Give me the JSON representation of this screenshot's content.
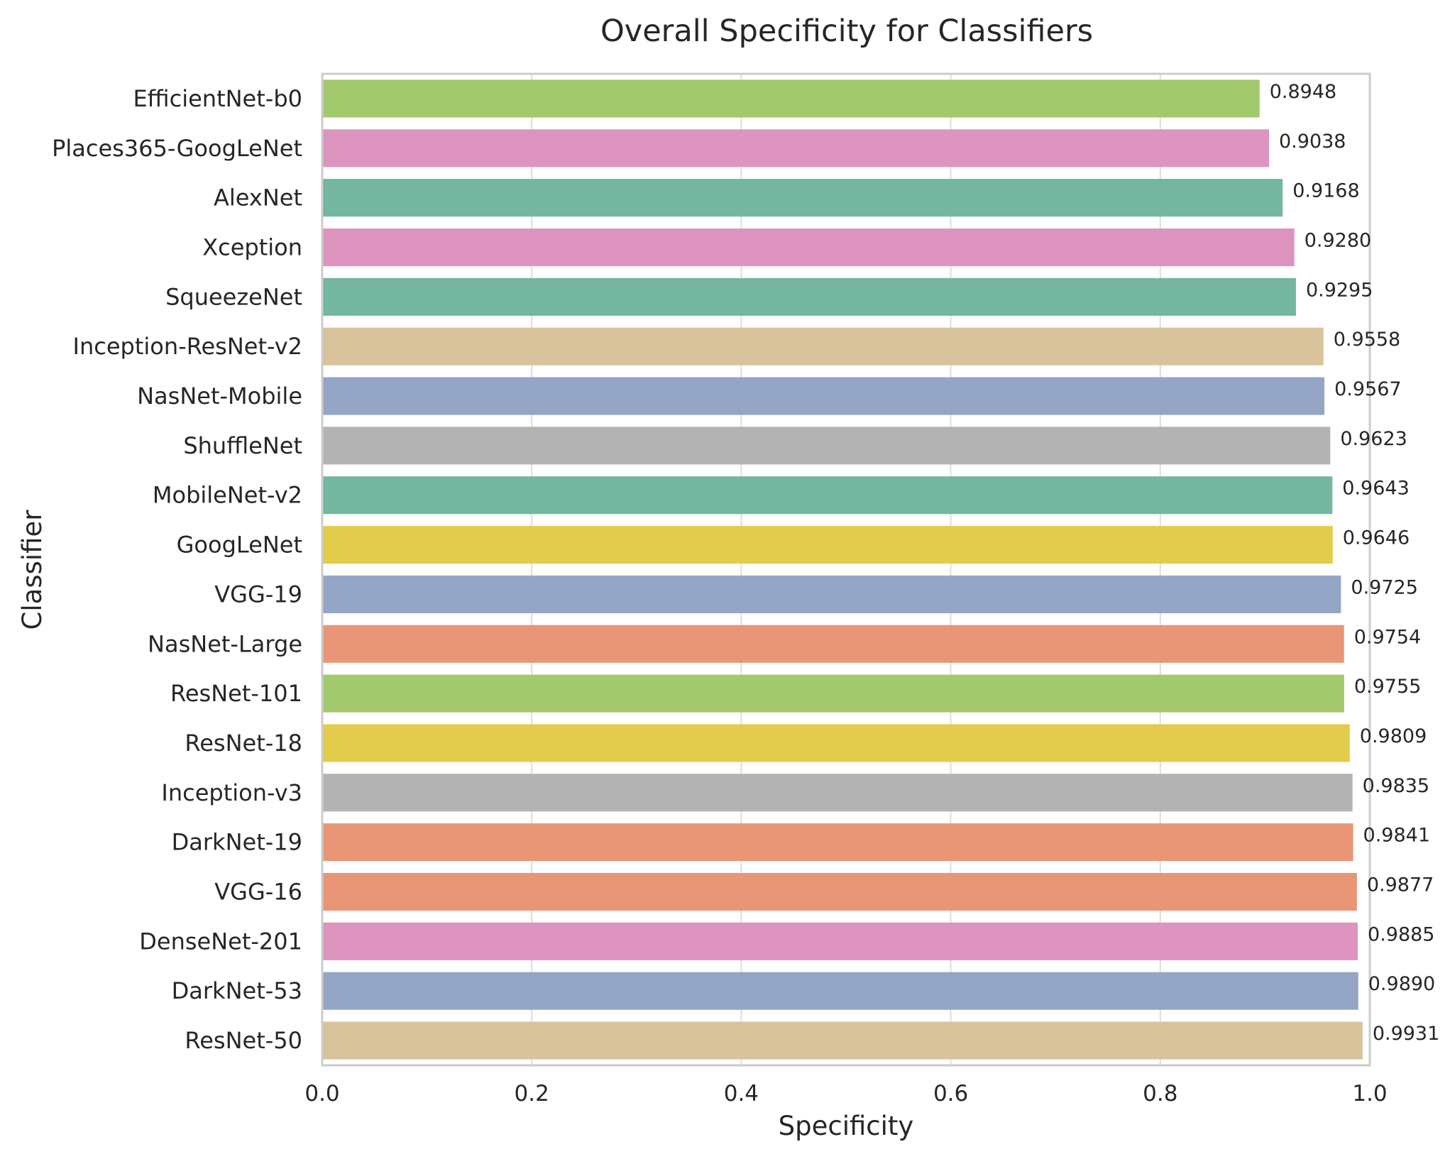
{
  "chart_data": {
    "type": "bar",
    "orientation": "horizontal",
    "title": "Overall Specificity for Classifiers",
    "xlabel": "Specificity",
    "ylabel": "Classifier",
    "xlim": [
      0.0,
      1.0
    ],
    "xticks": [
      "0.0",
      "0.2",
      "0.4",
      "0.6",
      "0.8",
      "1.0"
    ],
    "grid": true,
    "categories": [
      "EfficientNet-b0",
      "Places365-GoogLeNet",
      "AlexNet",
      "Xception",
      "SqueezeNet",
      "Inception-ResNet-v2",
      "NasNet-Mobile",
      "ShuffleNet",
      "MobileNet-v2",
      "GoogLeNet",
      "VGG-19",
      "NasNet-Large",
      "ResNet-101",
      "ResNet-18",
      "Inception-v3",
      "DarkNet-19",
      "VGG-16",
      "DenseNet-201",
      "DarkNet-53",
      "ResNet-50"
    ],
    "values": [
      0.8948,
      0.9038,
      0.9168,
      0.928,
      0.9295,
      0.9558,
      0.9567,
      0.9623,
      0.9643,
      0.9646,
      0.9725,
      0.9754,
      0.9755,
      0.9809,
      0.9835,
      0.9841,
      0.9877,
      0.9885,
      0.989,
      0.9931
    ],
    "value_labels": [
      "0.8948",
      "0.9038",
      "0.9168",
      "0.9280",
      "0.9295",
      "0.9558",
      "0.9567",
      "0.9623",
      "0.9643",
      "0.9646",
      "0.9725",
      "0.9754",
      "0.9755",
      "0.9809",
      "0.9835",
      "0.9841",
      "0.9877",
      "0.9885",
      "0.9890",
      "0.9931"
    ],
    "colors": [
      "#a2c96b",
      "#dd94bf",
      "#74b6a0",
      "#dd94bf",
      "#74b6a0",
      "#d9c39d",
      "#95a5c5",
      "#b3b3b3",
      "#74b6a0",
      "#e3cb4b",
      "#95a5c5",
      "#e89675",
      "#a2c96b",
      "#e3cb4b",
      "#b3b3b3",
      "#e89675",
      "#e89675",
      "#dd94bf",
      "#95a5c5",
      "#d9c39d"
    ]
  },
  "style": {
    "grid_color": "#dedede",
    "frame_color": "#cccccc",
    "text_color": "#262626",
    "background": "#ffffff"
  }
}
